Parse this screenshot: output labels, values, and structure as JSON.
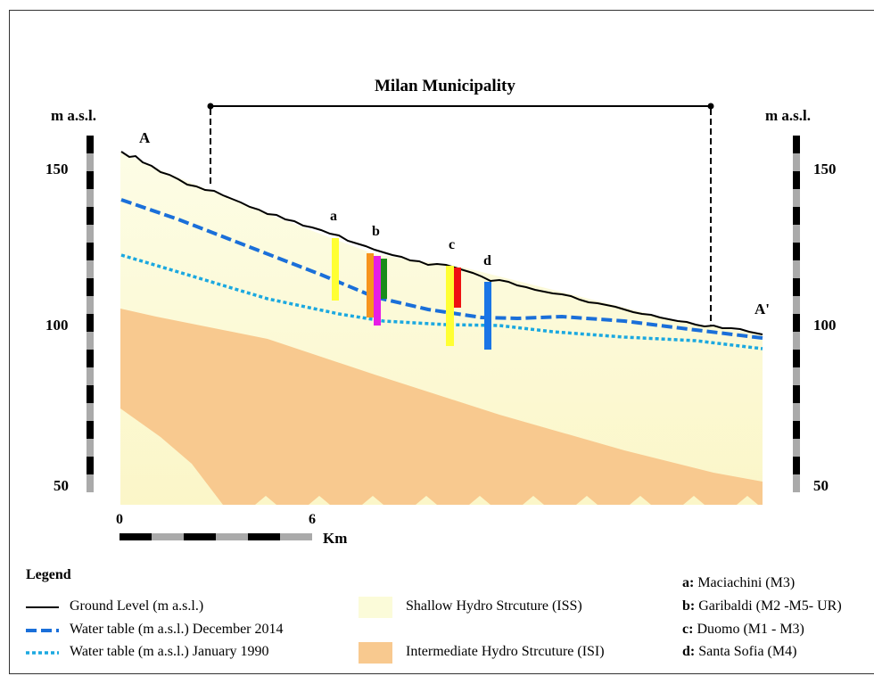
{
  "title": "Milan Municipality",
  "axis": {
    "left_label": "m a.s.l.",
    "right_label": "m a.s.l.",
    "ticks": [
      "150",
      "100",
      "50"
    ]
  },
  "section_ends": {
    "start": "A",
    "end": "A'"
  },
  "scale": {
    "start": "0",
    "mid": "6",
    "unit": "Km"
  },
  "stations": [
    {
      "letter": "a",
      "colors": [
        "#ffff33"
      ]
    },
    {
      "letter": "b",
      "colors": [
        "#f7941d",
        "#e61ee6",
        "#1a8c1a"
      ]
    },
    {
      "letter": "c",
      "colors": [
        "#ffff33",
        "#ee1111"
      ]
    },
    {
      "letter": "d",
      "colors": [
        "#1a75e6"
      ]
    }
  ],
  "legend": {
    "title": "Legend",
    "lines": [
      {
        "label": "Ground Level (m a.s.l.)",
        "color": "#000000",
        "style": "solid"
      },
      {
        "label": "Water table (m a.s.l.) December 2014",
        "color": "#1a6fd9",
        "style": "dashed"
      },
      {
        "label": "Water table (m a.s.l.) January 1990",
        "color": "#1ba8e0",
        "style": "dotted"
      }
    ],
    "areas": [
      {
        "label": "Shallow Hydro Strcuture (ISS)",
        "color": "#fbfbd9"
      },
      {
        "label": "Intermediate Hydro Strcuture (ISI)",
        "color": "#f8c98f"
      }
    ],
    "stations": [
      {
        "key": "a:",
        "label": "Maciachini (M3)"
      },
      {
        "key": "b:",
        "label": "Garibaldi (M2 -M5- UR)"
      },
      {
        "key": "c:",
        "label": "Duomo (M1 - M3)"
      },
      {
        "key": "d:",
        "label": "Santa Sofia (M4)"
      }
    ]
  }
}
